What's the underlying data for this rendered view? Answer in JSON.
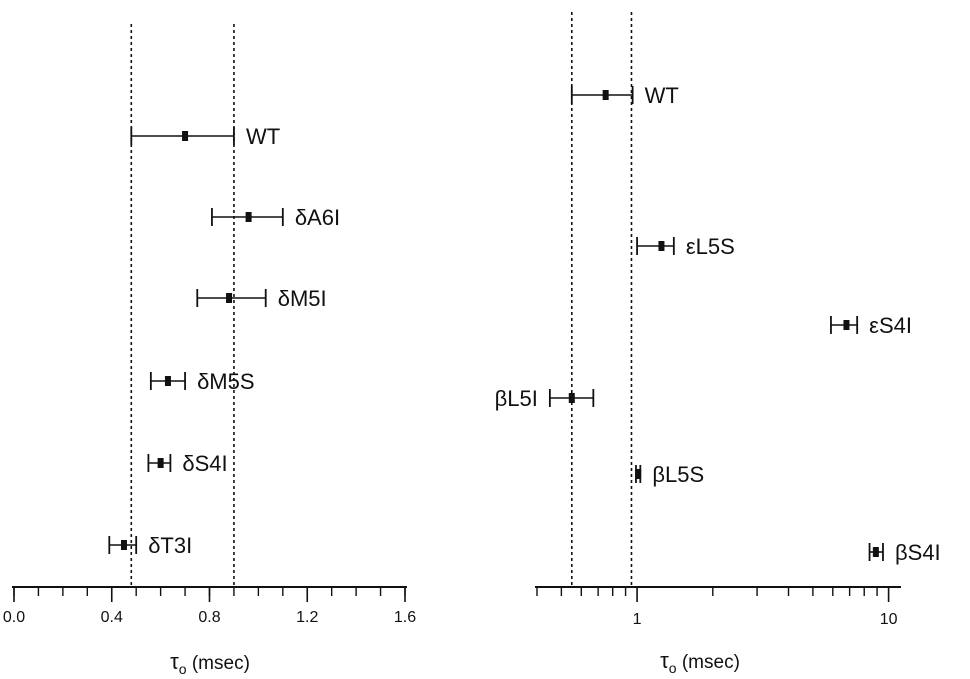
{
  "chart_data": [
    {
      "type": "scatter",
      "error_bars": true,
      "xscale": "linear",
      "xlim": [
        0.0,
        1.6
      ],
      "xlabel_symbol": "τ",
      "xlabel_sub": "o",
      "xlabel_unit": "(msec)",
      "xticks": [
        0.0,
        0.4,
        0.8,
        1.2,
        1.6
      ],
      "xtick_labels": [
        "0.0",
        "0.4",
        "0.8",
        "1.2",
        "1.6"
      ],
      "minor_step": 0.1,
      "reference_lines": [
        0.48,
        0.9
      ],
      "points": [
        {
          "label": "WT",
          "value": 0.7,
          "err_low": 0.48,
          "err_high": 0.9
        },
        {
          "label": "δA6I",
          "value": 0.96,
          "err_low": 0.81,
          "err_high": 1.1
        },
        {
          "label": "δM5I",
          "value": 0.88,
          "err_low": 0.75,
          "err_high": 1.03
        },
        {
          "label": "δM5S",
          "value": 0.63,
          "err_low": 0.56,
          "err_high": 0.7
        },
        {
          "label": "δS4I",
          "value": 0.6,
          "err_low": 0.55,
          "err_high": 0.64
        },
        {
          "label": "δT3I",
          "value": 0.45,
          "err_low": 0.39,
          "err_high": 0.5
        }
      ]
    },
    {
      "type": "scatter",
      "error_bars": true,
      "xscale": "log",
      "xlim": [
        0.4,
        11
      ],
      "xlabel_symbol": "τ",
      "xlabel_sub": "o",
      "xlabel_unit": "(msec)",
      "xticks": [
        1,
        10
      ],
      "xtick_labels": [
        "1",
        "10"
      ],
      "minor_ticks": [
        0.4,
        0.5,
        0.6,
        0.7,
        0.8,
        0.9,
        2,
        3,
        4,
        5,
        6,
        7,
        8,
        9
      ],
      "reference_lines": [
        0.55,
        0.95
      ],
      "points": [
        {
          "label": "WT",
          "value": 0.75,
          "err_low": 0.55,
          "err_high": 0.96
        },
        {
          "label": "εL5S",
          "value": 1.25,
          "err_low": 1.0,
          "err_high": 1.4
        },
        {
          "label": "εS4I",
          "value": 6.8,
          "err_low": 5.9,
          "err_high": 7.5
        },
        {
          "label": "βL5I",
          "value": 0.55,
          "err_low": 0.45,
          "err_high": 0.67
        },
        {
          "label": "βL5S",
          "value": 1.01,
          "err_low": 0.99,
          "err_high": 1.03
        },
        {
          "label": "βS4I",
          "value": 8.9,
          "err_low": 8.4,
          "err_high": 9.5
        }
      ]
    }
  ]
}
